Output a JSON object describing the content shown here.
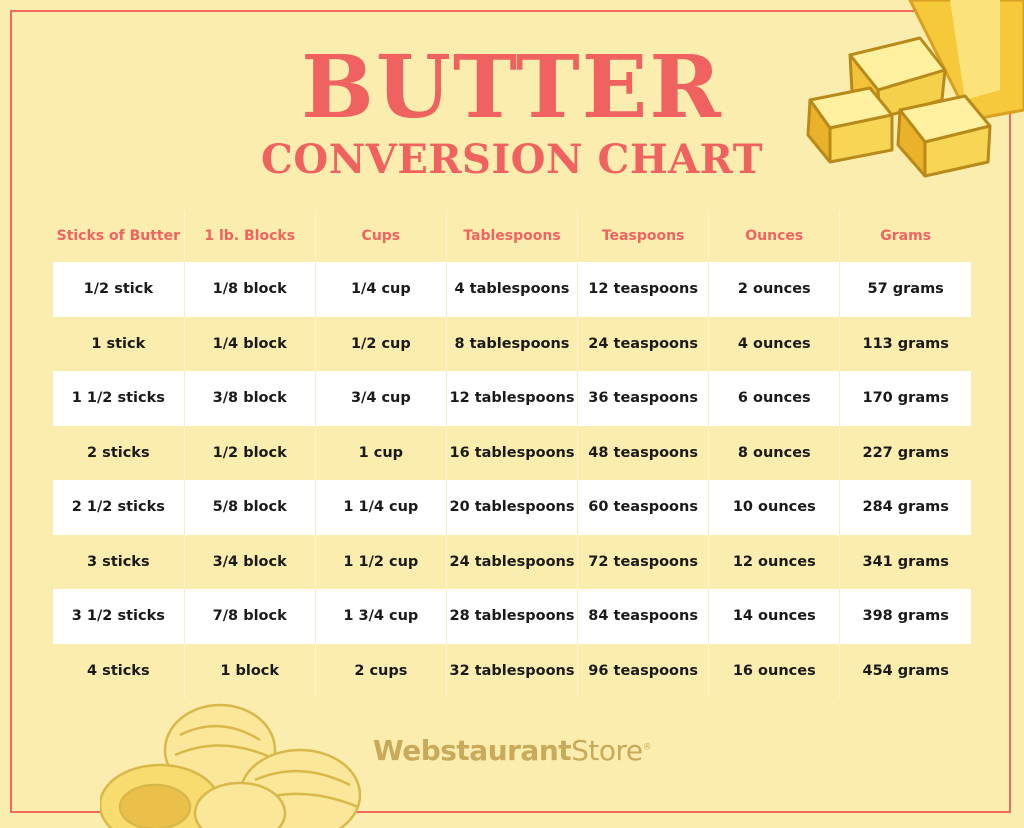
{
  "title": {
    "line1": "BUTTER",
    "line2": "CONVERSION CHART"
  },
  "colors": {
    "background": "#fbedae",
    "accent": "#f0625f",
    "row_white": "#ffffff",
    "logo": "#c9a95a"
  },
  "table": {
    "headers": [
      "Sticks of Butter",
      "1 lb. Blocks",
      "Cups",
      "Tablespoons",
      "Teaspoons",
      "Ounces",
      "Grams"
    ],
    "rows": [
      [
        "1/2 stick",
        "1/8 block",
        "1/4 cup",
        "4 tablespoons",
        "12 teaspoons",
        "2 ounces",
        "57 grams"
      ],
      [
        "1 stick",
        "1/4 block",
        "1/2 cup",
        "8 tablespoons",
        "24 teaspoons",
        "4 ounces",
        "113 grams"
      ],
      [
        "1 1/2 sticks",
        "3/8 block",
        "3/4 cup",
        "12 tablespoons",
        "36 teaspoons",
        "6 ounces",
        "170 grams"
      ],
      [
        "2 sticks",
        "1/2 block",
        "1 cup",
        "16 tablespoons",
        "48 teaspoons",
        "8 ounces",
        "227 grams"
      ],
      [
        "2 1/2 sticks",
        "5/8 block",
        "1 1/4 cup",
        "20 tablespoons",
        "60 teaspoons",
        "10 ounces",
        "284 grams"
      ],
      [
        "3 sticks",
        "3/4 block",
        "1 1/2 cup",
        "24 tablespoons",
        "72 teaspoons",
        "12 ounces",
        "341 grams"
      ],
      [
        "3 1/2 sticks",
        "7/8 block",
        "1 3/4 cup",
        "28 tablespoons",
        "84 teaspoons",
        "14 ounces",
        "398 grams"
      ],
      [
        "4 sticks",
        "1 block",
        "2 cups",
        "32 tablespoons",
        "96 teaspoons",
        "16 ounces",
        "454 grams"
      ]
    ]
  },
  "logo": {
    "bold": "Webstaurant",
    "light": "Store",
    "mark": "®"
  },
  "icons": {
    "top_right": "butter-cubes-illustration",
    "bottom_left": "butter-curls-illustration"
  }
}
